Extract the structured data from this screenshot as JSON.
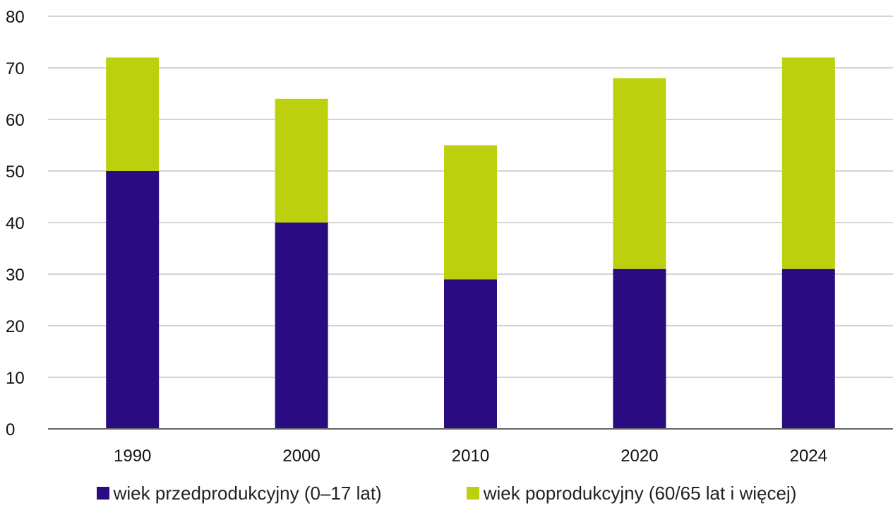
{
  "chart_data": {
    "type": "bar",
    "stacked": true,
    "categories": [
      "1990",
      "2000",
      "2010",
      "2020",
      "2024"
    ],
    "series": [
      {
        "name": "wiek przedprodukcyjny (0–17 lat)",
        "values": [
          50,
          40,
          29,
          31,
          31
        ],
        "color": "#2a0c82"
      },
      {
        "name": "wiek poprodukcyjny (60/65 lat i więcej)",
        "values": [
          22,
          24,
          26,
          37,
          41
        ],
        "color": "#bdd00e"
      }
    ],
    "ylim": [
      0,
      80
    ],
    "yticks": [
      0,
      10,
      20,
      30,
      40,
      50,
      60,
      70,
      80
    ],
    "grid": true,
    "legend_position": "bottom",
    "title": "",
    "xlabel": "",
    "ylabel": ""
  }
}
